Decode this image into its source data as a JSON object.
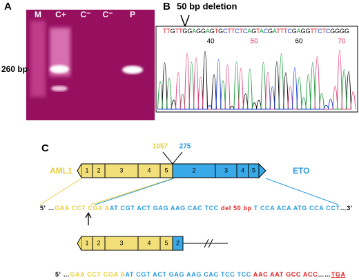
{
  "panel_a": {
    "label": "A",
    "lanes": [
      "M",
      "C+",
      "C⁻",
      "C⁻",
      "P"
    ],
    "size_marker": "260 bp"
  },
  "panel_b": {
    "label": "B",
    "annotation": "50 bp deletion",
    "sequence": "TTGTTGGAGGAGTGCTTCTCAGTACGATTTCGAGGTTCTCGGGG",
    "positions": [
      "40",
      "50",
      "60",
      "70"
    ]
  },
  "panel_c": {
    "label": "C",
    "breakpoint_left": "1057",
    "breakpoint_right": "275",
    "gene_left": "AML1",
    "gene_right": "ETO",
    "exons_left": [
      "1",
      "2",
      "3",
      "4",
      "5"
    ],
    "exons_right": [
      "2",
      "3",
      "4",
      "5"
    ],
    "sequence_1": [
      {
        "text": "5' …",
        "color": "#000000"
      },
      {
        "text": "GAA CCT CGA A",
        "color": "#e8cf3c"
      },
      {
        "text": "AT CGT ACT GAG AAG CAC TCC ",
        "color": "#2a9be0"
      },
      {
        "text": "del 50 bp ",
        "color": "#e02020"
      },
      {
        "text": "T CCA ACA ATG CCA CCT",
        "color": "#2a9be0"
      },
      {
        "text": "…3'",
        "color": "#000000"
      }
    ],
    "fusion_exons": [
      "1",
      "2",
      "3",
      "4",
      "5",
      "2"
    ],
    "sequence_2": [
      {
        "text": "5' …",
        "color": "#000000"
      },
      {
        "text": "GAA CCT CGA A",
        "color": "#e8cf3c"
      },
      {
        "text": "AT CGT ACT GAG AAG CAC TCC TCC ",
        "color": "#2a9be0"
      },
      {
        "text": "AAC AAT GCC ACC",
        "color": "#e02020"
      },
      {
        "text": "……",
        "color": "#000000"
      },
      {
        "text": "TGA",
        "color": "#e02020"
      }
    ]
  }
}
